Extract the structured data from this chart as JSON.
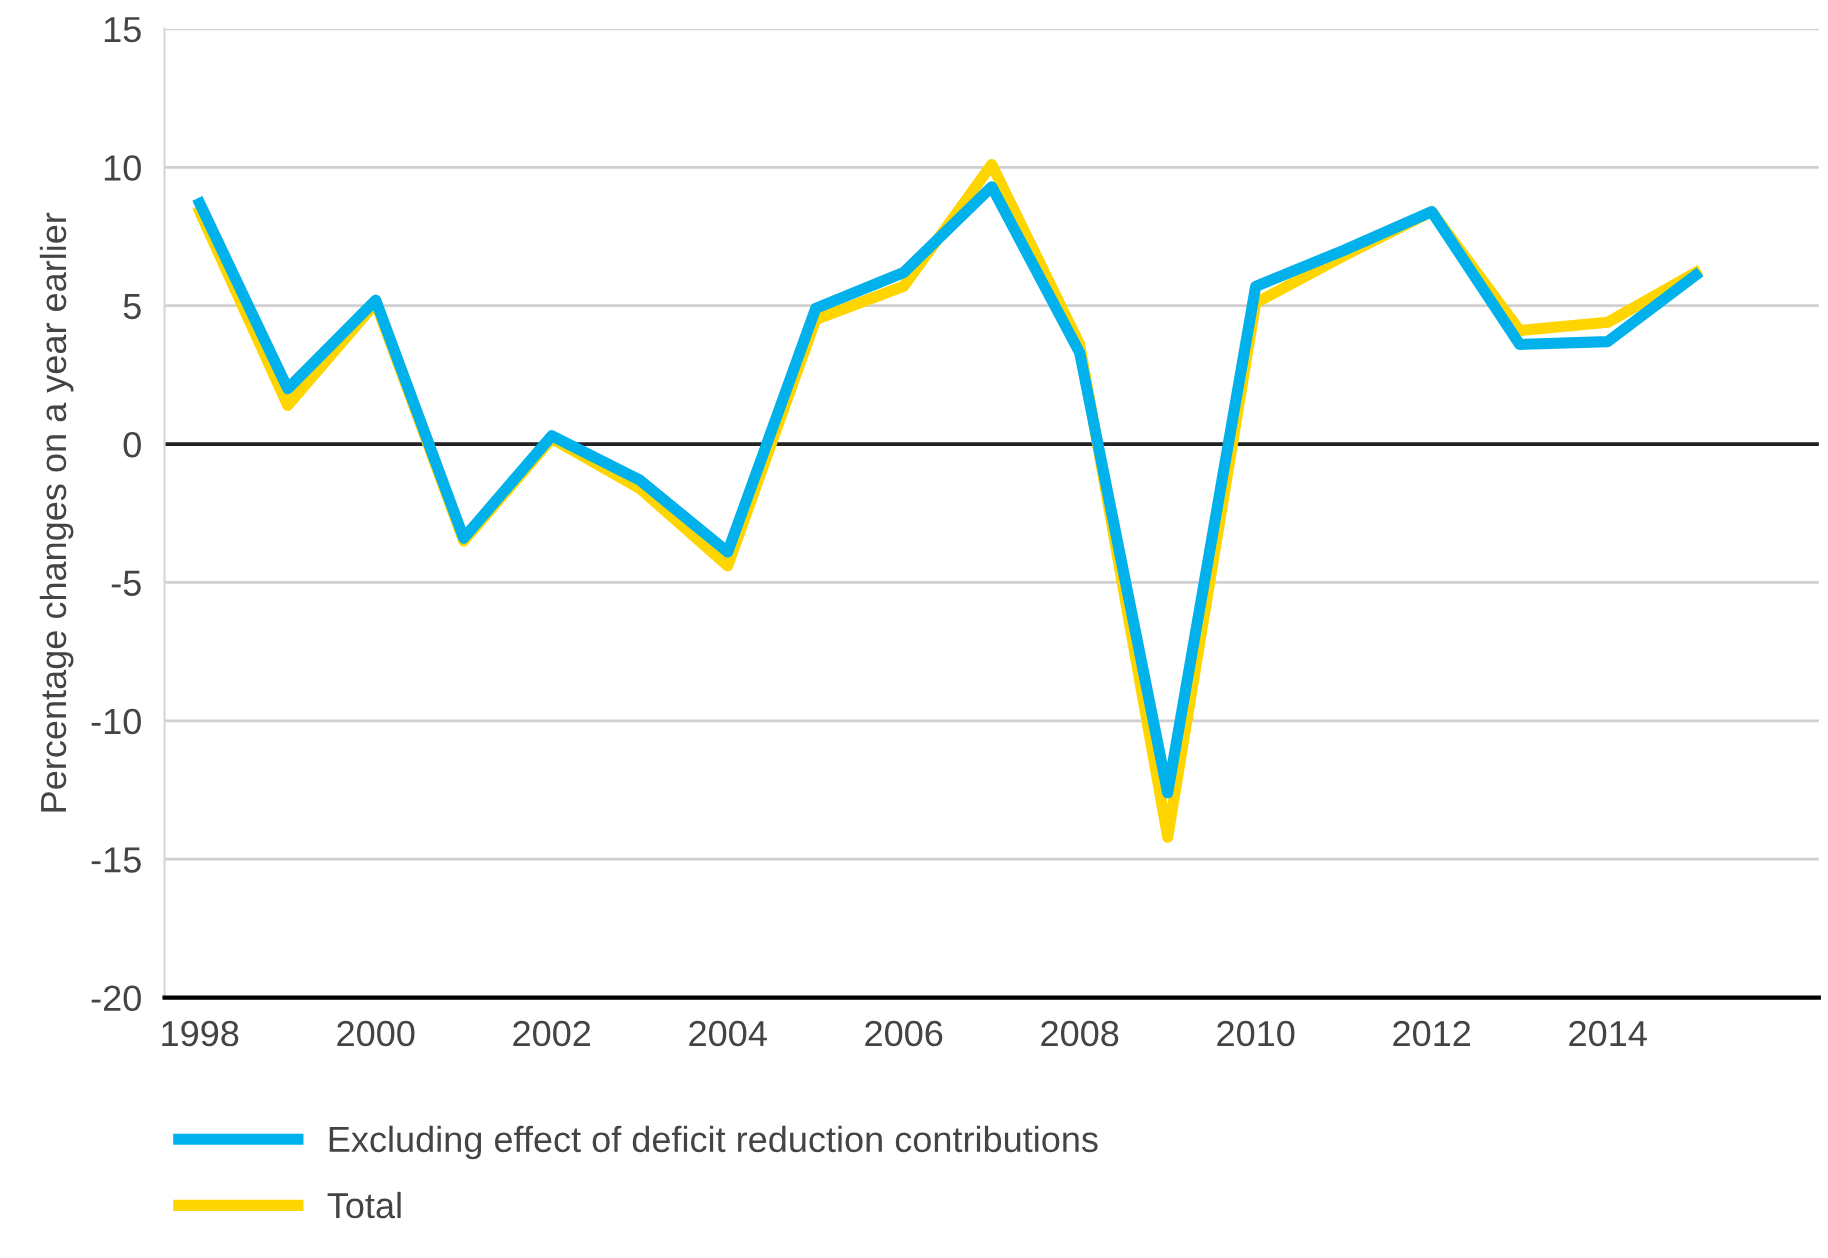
{
  "chart_data": {
    "type": "line",
    "ylabel": "Percentage changes on a year earlier",
    "x": [
      1998,
      1999,
      2000,
      2001,
      2002,
      2003,
      2004,
      2005,
      2006,
      2007,
      2008,
      2009,
      2010,
      2011,
      2012,
      2013,
      2014,
      2015
    ],
    "series": [
      {
        "name": "Total",
        "color": "#ffd500",
        "values": [
          8.4,
          1.4,
          5.1,
          -3.5,
          0.2,
          -1.6,
          -4.4,
          4.5,
          5.7,
          10.1,
          3.6,
          -14.2,
          5.1,
          6.8,
          8.4,
          4.1,
          4.4,
          6.2
        ]
      },
      {
        "name": "Excluding effect of deficit reduction contributions",
        "color": "#00b1eb",
        "values": [
          8.7,
          2.0,
          5.2,
          -3.4,
          0.3,
          -1.3,
          -3.9,
          4.9,
          6.2,
          9.3,
          3.3,
          -12.6,
          5.7,
          7.0,
          8.4,
          3.6,
          3.7,
          6.1
        ]
      }
    ],
    "xlim": [
      1997.6,
      2016.4
    ],
    "xticks": [
      1998,
      2000,
      2002,
      2004,
      2006,
      2008,
      2010,
      2012,
      2014
    ],
    "ylim": [
      -20,
      15
    ],
    "yticks": [
      -20,
      -15,
      -10,
      -5,
      0,
      5,
      10,
      15
    ],
    "ref_lines": [
      {
        "axis": "y",
        "value": 0,
        "color": "#222222"
      }
    ],
    "grid": "y",
    "legend": "bottom",
    "line_style": "solid",
    "marker": "none"
  }
}
